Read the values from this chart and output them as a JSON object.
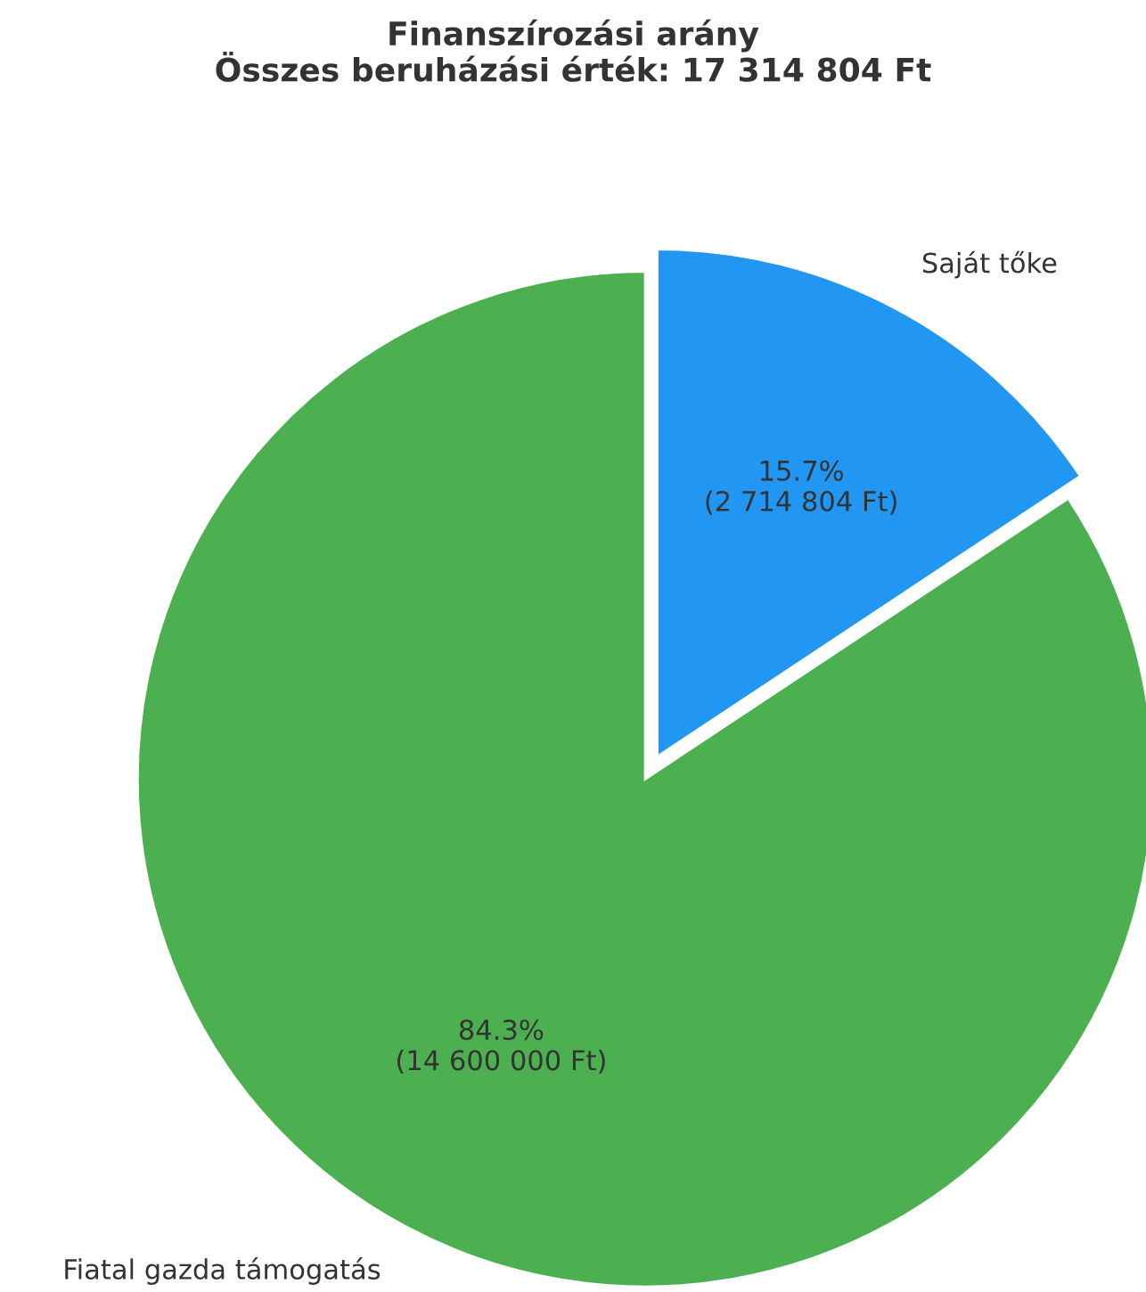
{
  "chart_data": {
    "type": "pie",
    "title": "Finanszírozási arány\nÖsszes beruházási érték: 17 314 804 Ft",
    "categories": [
      "Saját tőke",
      "Fiatal gazda támogatás"
    ],
    "values": [
      2714804,
      14600000
    ],
    "colors": [
      "#2196f3",
      "#4caf50"
    ],
    "value_labels": [
      "15.7%\n(2 714 804 Ft)",
      "84.3%\n(14 600 000 Ft)"
    ],
    "legend": false
  }
}
